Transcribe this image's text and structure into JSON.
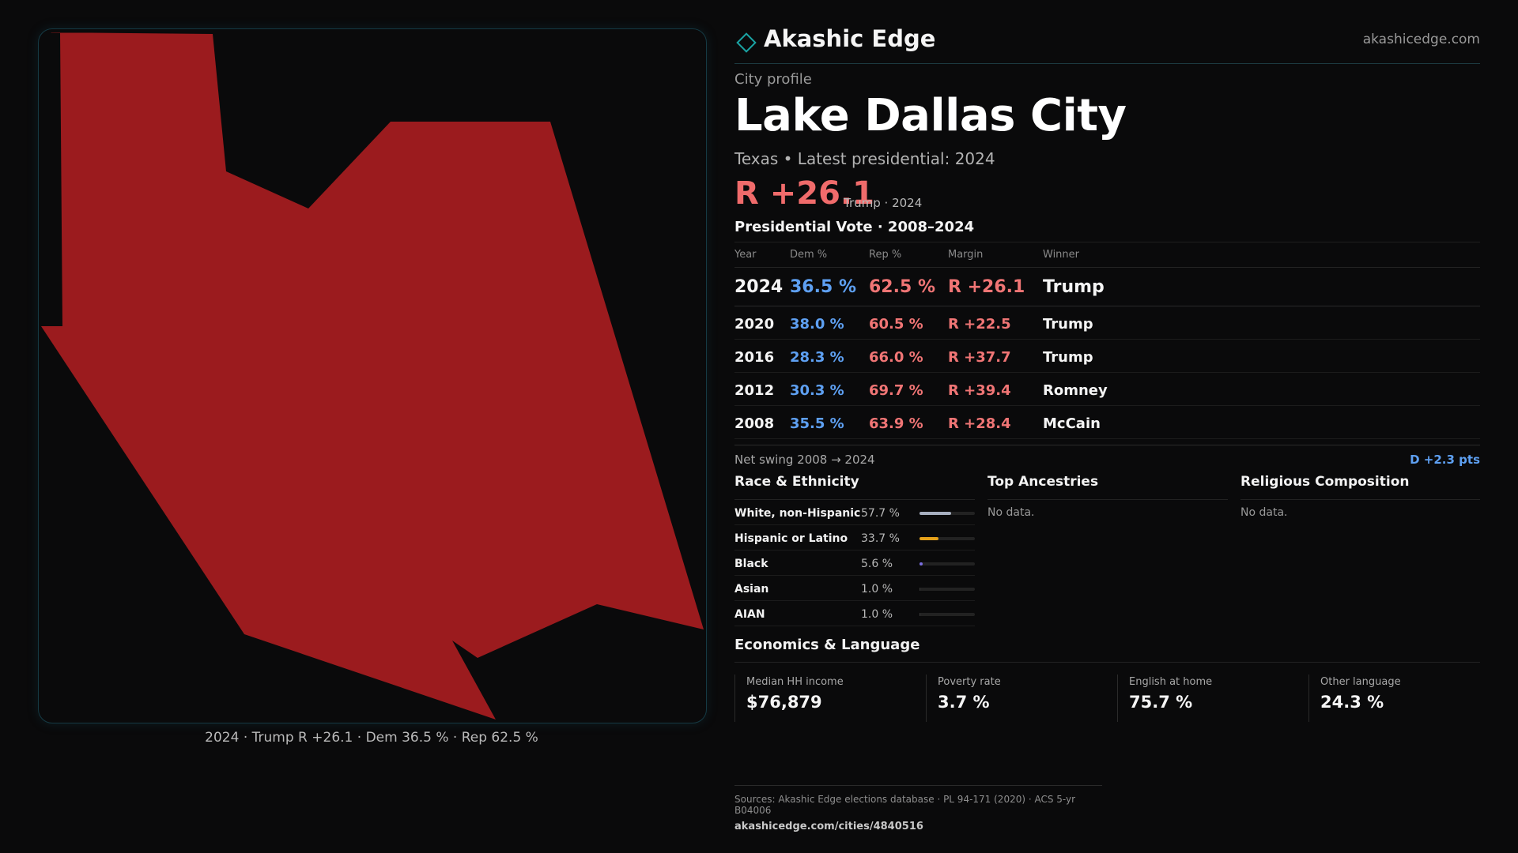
{
  "map": {
    "caption": "2024 · Trump R +26.1 · Dem 36.5 % · Rep 62.5 %",
    "fill_color": "#9b1b1e"
  },
  "brand": {
    "name": "Akashic Edge",
    "url": "akashicedge.com",
    "logo_icon": "diamond-outline-icon"
  },
  "profile": {
    "kicker": "City profile",
    "title": "Lake Dallas City",
    "subtitle": "Texas • Latest presidential: 2024",
    "margin": "R +26.1",
    "margin_note": "Trump · 2024"
  },
  "vote_table": {
    "title": "Presidential Vote · 2008–2024",
    "headers": {
      "year": "Year",
      "dem": "Dem %",
      "rep": "Rep %",
      "margin": "Margin",
      "winner": "Winner"
    },
    "rows": [
      {
        "year": "2024",
        "dem": "36.5 %",
        "rep": "62.5 %",
        "margin": "R +26.1",
        "winner": "Trump"
      },
      {
        "year": "2020",
        "dem": "38.0 %",
        "rep": "60.5 %",
        "margin": "R +22.5",
        "winner": "Trump"
      },
      {
        "year": "2016",
        "dem": "28.3 %",
        "rep": "66.0 %",
        "margin": "R +37.7",
        "winner": "Trump"
      },
      {
        "year": "2012",
        "dem": "30.3 %",
        "rep": "69.7 %",
        "margin": "R +39.4",
        "winner": "Romney"
      },
      {
        "year": "2008",
        "dem": "35.5 %",
        "rep": "63.9 %",
        "margin": "R +28.4",
        "winner": "McCain"
      }
    ]
  },
  "swing": {
    "label": "Net swing 2008 → 2024",
    "value": "D +2.3 pts"
  },
  "race": {
    "title": "Race & Ethnicity",
    "rows": [
      {
        "label": "White, non-Hispanic",
        "value": "57.7 %",
        "fraction": 0.577,
        "color": "#a7afc0"
      },
      {
        "label": "Hispanic or Latino",
        "value": "33.7 %",
        "fraction": 0.337,
        "color": "#e5a11a"
      },
      {
        "label": "Black",
        "value": "5.6 %",
        "fraction": 0.056,
        "color": "#7a6ee0"
      },
      {
        "label": "Asian",
        "value": "1.0 %",
        "fraction": 0.01,
        "color": "#3a3a3a"
      },
      {
        "label": "AIAN",
        "value": "1.0 %",
        "fraction": 0.01,
        "color": "#3a3a3a"
      }
    ]
  },
  "ancestries": {
    "title": "Top Ancestries",
    "note": "No data."
  },
  "religion": {
    "title": "Religious Composition",
    "note": "No data."
  },
  "economics": {
    "title": "Economics & Language",
    "cells": [
      {
        "label": "Median HH income",
        "value": "$76,879"
      },
      {
        "label": "Poverty rate",
        "value": "3.7 %"
      },
      {
        "label": "English at home",
        "value": "75.7 %"
      },
      {
        "label": "Other language",
        "value": "24.3 %"
      }
    ]
  },
  "footer": {
    "sources": "Sources: Akashic Edge elections database · PL 94-171 (2020) · ACS 5-yr B04006",
    "url": "akashicedge.com/cities/4840516"
  }
}
